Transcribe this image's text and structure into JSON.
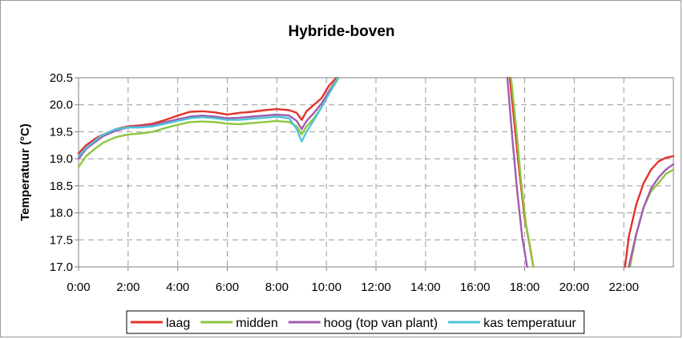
{
  "chart_data": {
    "type": "line",
    "title": "Hybride-boven",
    "xlabel": "",
    "ylabel": "Temperatuur (°C)",
    "xlim": [
      0,
      24
    ],
    "ylim": [
      17.0,
      20.5
    ],
    "x_ticks": [
      0,
      2,
      4,
      6,
      8,
      10,
      12,
      14,
      16,
      18,
      20,
      22
    ],
    "x_tick_labels": [
      "0:00",
      "2:00",
      "4:00",
      "6:00",
      "8:00",
      "10:00",
      "12:00",
      "14:00",
      "16:00",
      "18:00",
      "20:00",
      "22:00"
    ],
    "y_ticks": [
      17.0,
      17.5,
      18.0,
      18.5,
      19.0,
      19.5,
      20.0,
      20.5
    ],
    "y_tick_labels": [
      "17.0",
      "17.5",
      "18.0",
      "18.5",
      "19.0",
      "19.5",
      "20.0",
      "20.5"
    ],
    "grid": "dashed",
    "legend_position": "bottom",
    "series": [
      {
        "name": "laag",
        "color": "#e3322b",
        "segments": [
          [
            [
              0,
              19.1
            ],
            [
              0.3,
              19.25
            ],
            [
              0.7,
              19.38
            ],
            [
              1,
              19.45
            ],
            [
              1.5,
              19.55
            ],
            [
              2,
              19.6
            ],
            [
              2.5,
              19.62
            ],
            [
              3,
              19.65
            ],
            [
              3.5,
              19.72
            ],
            [
              4,
              19.8
            ],
            [
              4.5,
              19.87
            ],
            [
              5,
              19.88
            ],
            [
              5.5,
              19.86
            ],
            [
              6,
              19.82
            ],
            [
              6.5,
              19.85
            ],
            [
              7,
              19.87
            ],
            [
              7.5,
              19.9
            ],
            [
              8,
              19.92
            ],
            [
              8.5,
              19.9
            ],
            [
              8.8,
              19.85
            ],
            [
              9.0,
              19.72
            ],
            [
              9.2,
              19.88
            ],
            [
              9.5,
              20.0
            ],
            [
              9.8,
              20.12
            ],
            [
              10.1,
              20.35
            ],
            [
              10.4,
              20.5
            ]
          ],
          [
            [
              17.4,
              20.5
            ],
            [
              17.6,
              19.6
            ],
            [
              17.8,
              18.7
            ],
            [
              18.0,
              17.9
            ],
            [
              18.2,
              17.4
            ],
            [
              18.35,
              17.0
            ]
          ],
          [
            [
              22.05,
              17.0
            ],
            [
              22.2,
              17.55
            ],
            [
              22.5,
              18.15
            ],
            [
              22.8,
              18.55
            ],
            [
              23.1,
              18.8
            ],
            [
              23.4,
              18.95
            ],
            [
              23.7,
              19.02
            ],
            [
              24,
              19.05
            ]
          ]
        ]
      },
      {
        "name": "midden",
        "color": "#8dc63f",
        "segments": [
          [
            [
              0,
              18.85
            ],
            [
              0.3,
              19.05
            ],
            [
              0.7,
              19.2
            ],
            [
              1,
              19.3
            ],
            [
              1.5,
              19.4
            ],
            [
              2,
              19.45
            ],
            [
              2.5,
              19.47
            ],
            [
              3,
              19.5
            ],
            [
              3.5,
              19.57
            ],
            [
              4,
              19.63
            ],
            [
              4.5,
              19.68
            ],
            [
              5,
              19.69
            ],
            [
              5.5,
              19.68
            ],
            [
              6,
              19.65
            ],
            [
              6.5,
              19.64
            ],
            [
              7,
              19.66
            ],
            [
              7.5,
              19.68
            ],
            [
              8,
              19.7
            ],
            [
              8.5,
              19.68
            ],
            [
              8.8,
              19.6
            ],
            [
              9.0,
              19.45
            ],
            [
              9.2,
              19.6
            ],
            [
              9.5,
              19.75
            ],
            [
              9.8,
              19.95
            ],
            [
              10.1,
              20.2
            ],
            [
              10.5,
              20.5
            ]
          ],
          [
            [
              17.45,
              20.5
            ],
            [
              17.65,
              19.6
            ],
            [
              17.85,
              18.6
            ],
            [
              18.05,
              17.8
            ],
            [
              18.25,
              17.3
            ],
            [
              18.35,
              17.0
            ]
          ],
          [
            [
              22.25,
              17.0
            ],
            [
              22.5,
              17.6
            ],
            [
              22.8,
              18.1
            ],
            [
              23.1,
              18.4
            ],
            [
              23.4,
              18.55
            ],
            [
              23.7,
              18.72
            ],
            [
              24,
              18.8
            ]
          ]
        ]
      },
      {
        "name": "hoog (top van plant)",
        "color": "#a05cb0",
        "segments": [
          [
            [
              0,
              19.0
            ],
            [
              0.3,
              19.18
            ],
            [
              0.7,
              19.32
            ],
            [
              1,
              19.42
            ],
            [
              1.5,
              19.52
            ],
            [
              2,
              19.58
            ],
            [
              2.5,
              19.6
            ],
            [
              3,
              19.62
            ],
            [
              3.5,
              19.68
            ],
            [
              4,
              19.73
            ],
            [
              4.5,
              19.78
            ],
            [
              5,
              19.8
            ],
            [
              5.5,
              19.78
            ],
            [
              6,
              19.75
            ],
            [
              6.5,
              19.76
            ],
            [
              7,
              19.78
            ],
            [
              7.5,
              19.8
            ],
            [
              8,
              19.82
            ],
            [
              8.5,
              19.8
            ],
            [
              8.8,
              19.7
            ],
            [
              9.0,
              19.55
            ],
            [
              9.2,
              19.7
            ],
            [
              9.5,
              19.85
            ],
            [
              9.8,
              20.02
            ],
            [
              10.1,
              20.25
            ],
            [
              10.45,
              20.5
            ]
          ],
          [
            [
              17.3,
              20.5
            ],
            [
              17.5,
              19.4
            ],
            [
              17.7,
              18.4
            ],
            [
              17.9,
              17.55
            ],
            [
              18.1,
              17.0
            ]
          ],
          [
            [
              22.2,
              17.0
            ],
            [
              22.5,
              17.6
            ],
            [
              22.8,
              18.1
            ],
            [
              23.1,
              18.45
            ],
            [
              23.4,
              18.65
            ],
            [
              23.7,
              18.8
            ],
            [
              24,
              18.9
            ]
          ]
        ]
      },
      {
        "name": "kas temperatuur",
        "color": "#4ec4d8",
        "segments": [
          [
            [
              0,
              19.05
            ],
            [
              0.3,
              19.2
            ],
            [
              0.7,
              19.35
            ],
            [
              1,
              19.45
            ],
            [
              1.5,
              19.55
            ],
            [
              2,
              19.58
            ],
            [
              2.5,
              19.58
            ],
            [
              3,
              19.6
            ],
            [
              3.5,
              19.65
            ],
            [
              4,
              19.7
            ],
            [
              4.5,
              19.75
            ],
            [
              5,
              19.77
            ],
            [
              5.5,
              19.75
            ],
            [
              6,
              19.72
            ],
            [
              6.5,
              19.72
            ],
            [
              7,
              19.74
            ],
            [
              7.5,
              19.76
            ],
            [
              8,
              19.78
            ],
            [
              8.5,
              19.75
            ],
            [
              8.8,
              19.55
            ],
            [
              9.0,
              19.32
            ],
            [
              9.2,
              19.5
            ],
            [
              9.5,
              19.72
            ],
            [
              9.8,
              19.95
            ],
            [
              10.1,
              20.2
            ],
            [
              10.45,
              20.5
            ]
          ]
        ]
      }
    ]
  }
}
